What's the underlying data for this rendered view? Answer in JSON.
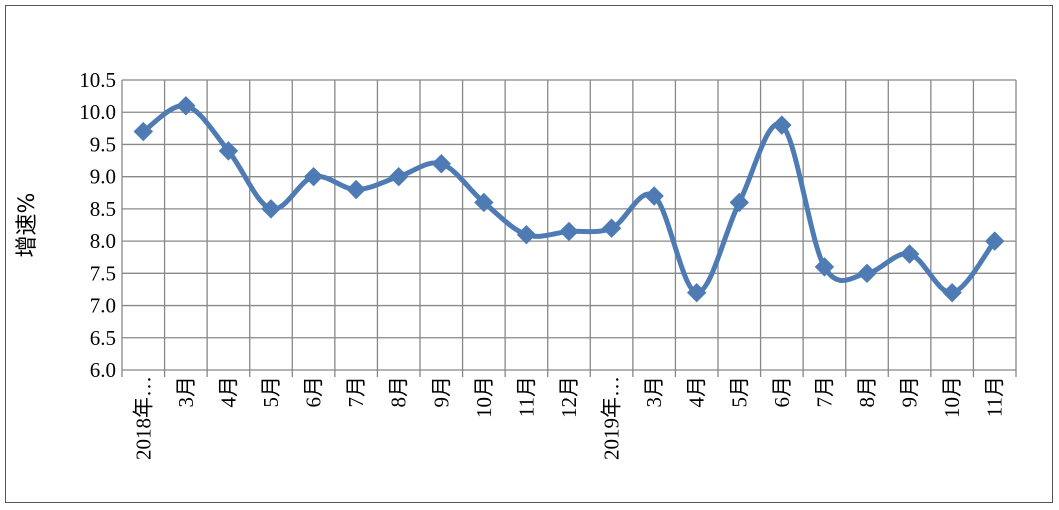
{
  "chart_data": {
    "type": "line",
    "title": "",
    "xlabel": "",
    "ylabel": "增速%",
    "ylim": [
      6.0,
      10.5
    ],
    "ytick_step": 0.5,
    "grid": true,
    "legend": "none",
    "colors": {
      "line": "#4f7bb5",
      "marker": "#4f7bb5",
      "grid": "#888888"
    },
    "categories": [
      "2018年…",
      "3月",
      "4月",
      "5月",
      "6月",
      "7月",
      "8月",
      "9月",
      "10月",
      "11月",
      "12月",
      "2019年…",
      "3月",
      "4月",
      "5月",
      "6月",
      "7月",
      "8月",
      "9月",
      "10月",
      "11月"
    ],
    "series": [
      {
        "values": [
          9.7,
          10.1,
          9.4,
          8.5,
          9.0,
          8.8,
          9.0,
          9.2,
          8.6,
          8.1,
          8.15,
          8.2,
          8.7,
          7.2,
          8.6,
          9.8,
          7.6,
          7.5,
          7.8,
          7.2,
          8.0
        ]
      }
    ]
  }
}
